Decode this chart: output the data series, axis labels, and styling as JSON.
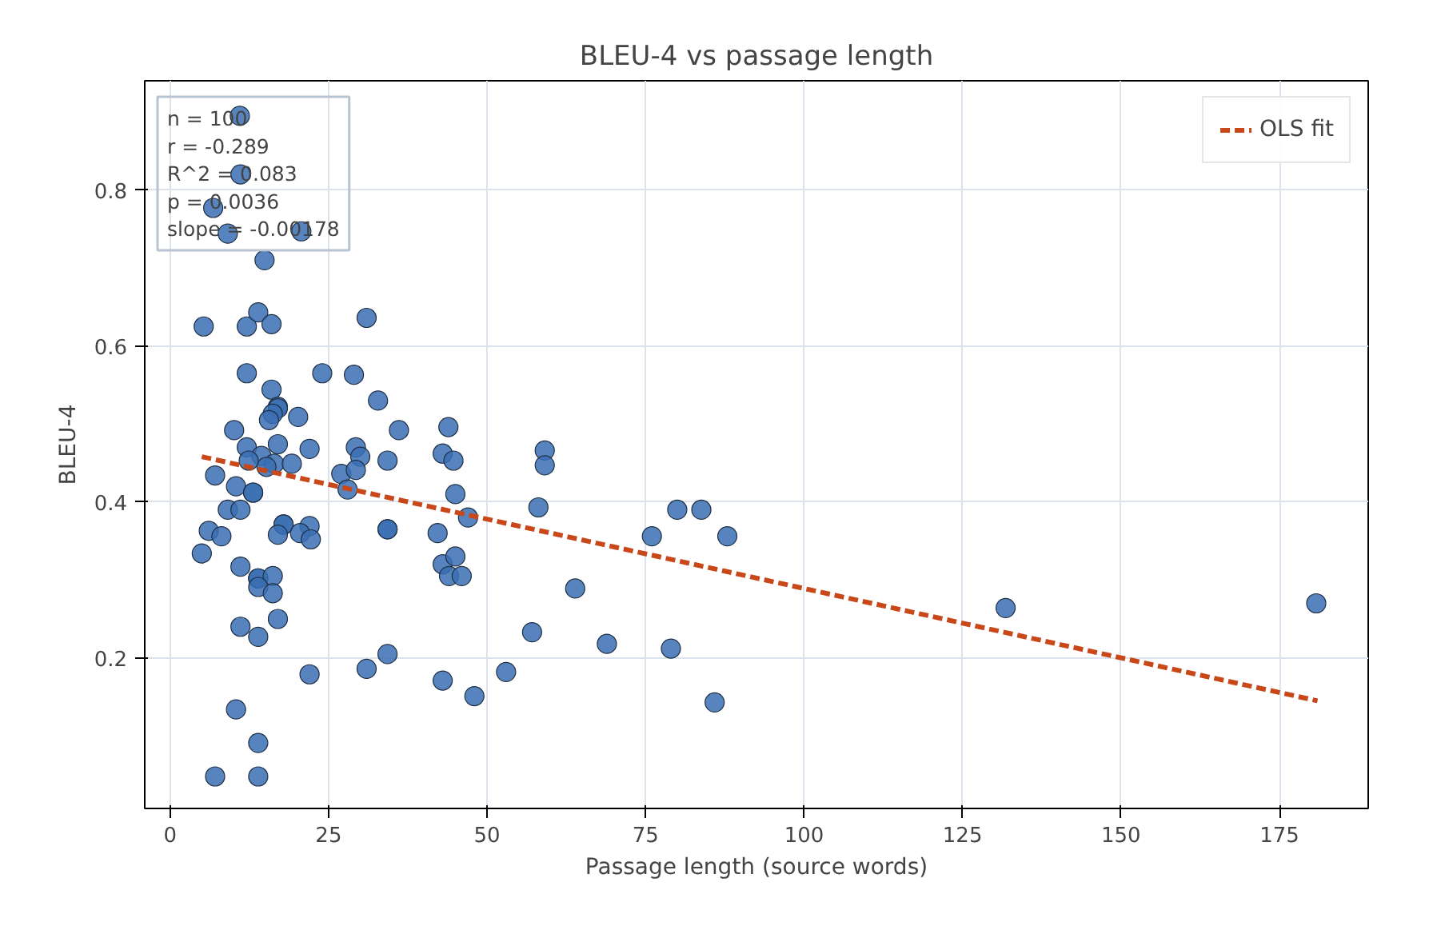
{
  "chart_data": {
    "type": "scatter",
    "title": "BLEU-4 vs passage length",
    "xlabel": "Passage length (source words)",
    "ylabel": "BLEU-4",
    "annotations": [
      "n = 100\nr = -0.289\nR^2 = 0.083\np = 0.0036\nslope = -0.00178"
    ],
    "xlim": [
      -4,
      189
    ],
    "ylim": [
      0.007,
      0.94
    ],
    "xticks": [
      0,
      25,
      50,
      75,
      100,
      125,
      150,
      175
    ],
    "yticks": [
      0.2,
      0.4,
      0.6,
      0.8
    ],
    "grid": true,
    "legend": "top right",
    "marker": "circle",
    "series": [
      {
        "color": "#3a6fb3",
        "x": [
          11,
          11.1,
          6.8,
          9.1,
          14.9,
          20.7,
          5.3,
          12.1,
          13.9,
          16,
          31,
          12.1,
          24,
          29,
          16,
          32.8,
          17,
          17,
          16.2,
          15.6,
          20.2,
          10.1,
          36.1,
          43.9,
          12.1,
          17,
          22,
          14.4,
          16.4,
          19.2,
          15.2,
          12.4,
          7.1,
          10.4,
          13.1,
          13.1,
          9.1,
          11.1,
          27,
          29.3,
          30,
          29.3,
          34.3,
          28,
          43,
          44.7,
          45,
          17.9,
          17.9,
          17,
          22,
          20.5,
          22.2,
          34.3,
          34.3,
          6.1,
          8.1,
          5,
          11.1,
          13.9,
          13.9,
          16.2,
          13.9,
          16.2,
          42.2,
          43,
          45,
          44,
          46,
          11.1,
          13.9,
          17,
          22,
          31,
          34.3,
          43,
          10.4,
          13.9,
          7.1,
          13.9,
          47,
          59.1,
          59.1,
          58.1,
          63.9,
          57.1,
          68.9,
          79,
          53,
          48,
          76,
          80,
          83.8,
          87.9,
          85.9,
          131.8,
          180.8
        ],
        "values": [
          0.895,
          0.82,
          0.777,
          0.744,
          0.71,
          0.747,
          0.625,
          0.625,
          0.643,
          0.628,
          0.636,
          0.565,
          0.565,
          0.563,
          0.544,
          0.53,
          0.522,
          0.52,
          0.513,
          0.505,
          0.509,
          0.492,
          0.492,
          0.496,
          0.47,
          0.474,
          0.468,
          0.459,
          0.449,
          0.449,
          0.445,
          0.453,
          0.434,
          0.42,
          0.412,
          0.412,
          0.39,
          0.39,
          0.436,
          0.47,
          0.458,
          0.441,
          0.453,
          0.416,
          0.462,
          0.453,
          0.41,
          0.371,
          0.371,
          0.358,
          0.369,
          0.36,
          0.352,
          0.365,
          0.365,
          0.363,
          0.356,
          0.334,
          0.317,
          0.302,
          0.302,
          0.305,
          0.291,
          0.283,
          0.36,
          0.32,
          0.33,
          0.305,
          0.305,
          0.24,
          0.227,
          0.25,
          0.179,
          0.186,
          0.205,
          0.171,
          0.134,
          0.091,
          0.048,
          0.048,
          0.38,
          0.466,
          0.447,
          0.393,
          0.289,
          0.233,
          0.218,
          0.212,
          0.182,
          0.151,
          0.356,
          0.39,
          0.39,
          0.356,
          0.143,
          0.264,
          0.27
        ]
      },
      {
        "type": "line",
        "name": "OLS fit",
        "color": "#c8481a",
        "line_style": "dashed",
        "marker": "none",
        "x": [
          5,
          181
        ],
        "values": [
          0.458,
          0.145
        ]
      }
    ]
  }
}
